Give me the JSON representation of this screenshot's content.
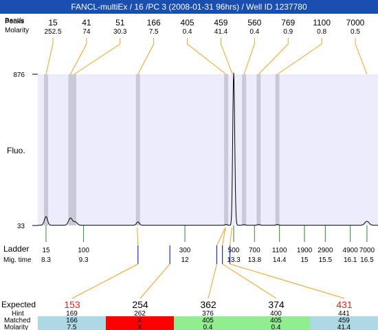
{
  "title": "FANCL-multiEx / 16 /PC 3 (2008-01-31 96hrs) / Well ID 1237780",
  "colors": {
    "title_bg": "#1a4fb0",
    "plot_bg": "#ececfb",
    "band": "#c9c9d8",
    "trace": "#000000",
    "peak_connector": "#f0a020",
    "ladder_tick": "#2a8a2a",
    "expected_tick": "#1a2ad0",
    "expected_red": "#e02020",
    "cell_blue": "#add8e6",
    "cell_red": "#ff0000",
    "cell_green": "#90ee90"
  },
  "chart_data": {
    "type": "line",
    "ylabel": "Fluo.",
    "y_ticks": [
      "876",
      "33"
    ],
    "ylim": [
      33,
      876
    ],
    "top_row_labels": [
      "Peaks",
      "Molarity"
    ],
    "top_row_label_overlap": "Bands",
    "peaks": [
      {
        "size": "15",
        "molarity": "252.5",
        "mig": 8.3
      },
      {
        "size": "41",
        "molarity": "74",
        "mig": 8.95
      },
      {
        "size": "51",
        "molarity": "30.3",
        "mig": 9.05
      },
      {
        "size": "166",
        "molarity": "7.5",
        "mig": 10.75
      },
      {
        "size": "405",
        "molarity": "0.4",
        "mig": 13.1
      },
      {
        "size": "459",
        "molarity": "41.4",
        "mig": 13.27
      },
      {
        "size": "560",
        "molarity": "0.4",
        "mig": 13.55
      },
      {
        "size": "769",
        "molarity": "0.9",
        "mig": 13.9
      },
      {
        "size": "1100",
        "molarity": "0.8",
        "mig": 14.35
      },
      {
        "size": "7000",
        "molarity": "0.5",
        "mig": 16.5
      }
    ],
    "bands": [
      8.3,
      8.95,
      9.05,
      10.75,
      13.1,
      13.55,
      13.9,
      14.35
    ],
    "trace_peaks": [
      {
        "mig": 8.3,
        "height": 48,
        "width": 0.04
      },
      {
        "mig": 8.95,
        "height": 40,
        "width": 0.05
      },
      {
        "mig": 9.08,
        "height": 18,
        "width": 0.05
      },
      {
        "mig": 10.75,
        "height": 18,
        "width": 0.04
      },
      {
        "mig": 13.1,
        "height": 4,
        "width": 0.03
      },
      {
        "mig": 13.3,
        "height": 850,
        "width": 0.025
      },
      {
        "mig": 13.55,
        "height": 3,
        "width": 0.03
      },
      {
        "mig": 13.9,
        "height": 4,
        "width": 0.03
      },
      {
        "mig": 14.35,
        "height": 4,
        "width": 0.03
      },
      {
        "mig": 16.5,
        "height": 22,
        "width": 0.05
      }
    ],
    "ladder_label": "Ladder",
    "mig_label": "Mig. time",
    "ladder": [
      {
        "size": "15",
        "mig": 8.3
      },
      {
        "size": "100",
        "mig": 9.3
      },
      {
        "size": "300",
        "mig": 12
      },
      {
        "size": "500",
        "mig": 13.3
      },
      {
        "size": "700",
        "mig": 13.8
      },
      {
        "size": "1100",
        "mig": 14.4
      },
      {
        "size": "1900",
        "mig": 15
      },
      {
        "size": "2900",
        "mig": 15.5
      },
      {
        "size": "4900",
        "mig": 16.1
      },
      {
        "size": "7000",
        "mig": 16.5
      }
    ],
    "expected_labels": [
      "Expected",
      "Hint",
      "Matched",
      "Molarity"
    ],
    "expected": [
      {
        "value": "153",
        "red": true,
        "hint": "169",
        "matched": "166",
        "molarity": "7.5",
        "status": "blue",
        "mig": 10.75,
        "matched_mig": 10.75
      },
      {
        "value": "254",
        "red": false,
        "hint": "262",
        "matched": "X",
        "molarity": "X",
        "status": "red",
        "mig": 11.6,
        "matched_mig": null
      },
      {
        "value": "362",
        "red": false,
        "hint": "376",
        "matched": "405",
        "molarity": "0.4",
        "status": "green",
        "mig": 12.85,
        "matched_mig": 13.1
      },
      {
        "value": "374",
        "red": false,
        "hint": "400",
        "matched": "405",
        "molarity": "0.4",
        "status": "green",
        "mig": 13.0,
        "matched_mig": 13.1
      },
      {
        "value": "431",
        "red": true,
        "hint": "441",
        "matched": "459",
        "molarity": "41.4",
        "status": "blue",
        "mig": 13.2,
        "matched_mig": 13.27
      }
    ]
  }
}
